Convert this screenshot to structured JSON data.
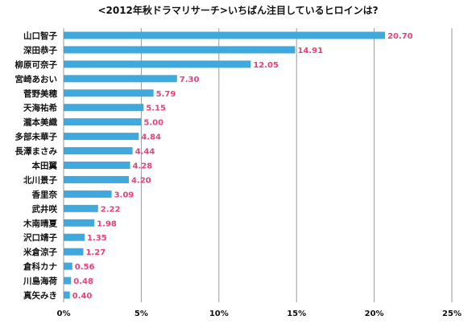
{
  "chart_data": {
    "type": "bar",
    "orientation": "horizontal",
    "title": "<2012年秋ドラマリサーチ>いちばん注目しているヒロインは?",
    "categories": [
      "山口智子",
      "深田恭子",
      "柳原可奈子",
      "宮崎あおい",
      "菅野美穂",
      "天海祐希",
      "瀧本美織",
      "多部未華子",
      "長澤まさみ",
      "本田翼",
      "北川景子",
      "香里奈",
      "武井咲",
      "木南晴夏",
      "沢口靖子",
      "米倉涼子",
      "倉科カナ",
      "川島海荷",
      "真矢みき"
    ],
    "values": [
      20.7,
      14.91,
      12.05,
      7.3,
      5.79,
      5.15,
      5.0,
      4.84,
      4.44,
      4.28,
      4.2,
      3.09,
      2.22,
      1.98,
      1.35,
      1.27,
      0.56,
      0.48,
      0.4
    ],
    "value_labels": [
      "20.70",
      "14.91",
      "12.05",
      "7.30",
      "5.79",
      "5.15",
      "5.00",
      "4.84",
      "4.44",
      "4.28",
      "4.20",
      "3.09",
      "2.22",
      "1.98",
      "1.35",
      "1.27",
      "0.56",
      "0.48",
      "0.40"
    ],
    "xlim": [
      0,
      25
    ],
    "xticks": [
      0,
      5,
      10,
      15,
      20,
      25
    ],
    "xtick_labels": [
      "0%",
      "5%",
      "10%",
      "15%",
      "20%",
      "25%"
    ],
    "grid": true,
    "bar_color": "#3fa9dd",
    "label_color": "#e8417a"
  }
}
